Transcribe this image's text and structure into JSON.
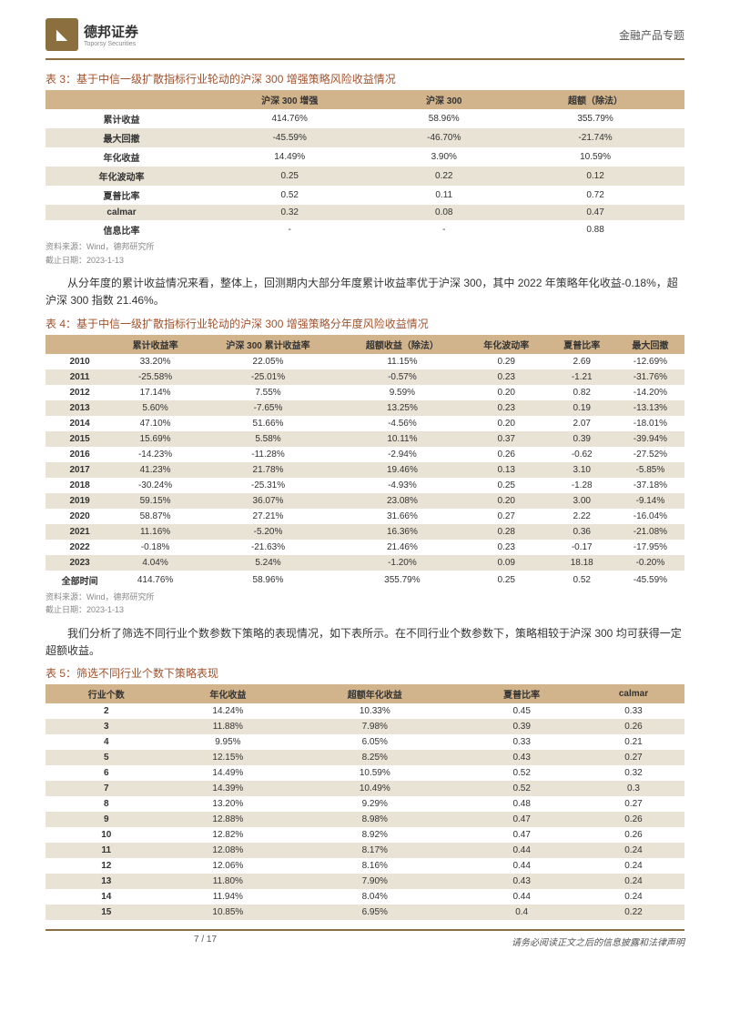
{
  "header": {
    "company": "德邦证券",
    "company_sub": "Toporsy Securities",
    "category": "金融产品专题"
  },
  "colors": {
    "accent": "#8b6f3f",
    "title": "#a0522d",
    "th_bg": "#d2b48c",
    "row_even": "#e8e3d5",
    "row_odd": "#ffffff"
  },
  "table3": {
    "title": "表 3：基于中信一级扩散指标行业轮动的沪深 300 增强策略风险收益情况",
    "columns": [
      "",
      "沪深 300 增强",
      "沪深 300",
      "超额（除法）"
    ],
    "rows": [
      [
        "累计收益",
        "414.76%",
        "58.96%",
        "355.79%"
      ],
      [
        "最大回撤",
        "-45.59%",
        "-46.70%",
        "-21.74%"
      ],
      [
        "年化收益",
        "14.49%",
        "3.90%",
        "10.59%"
      ],
      [
        "年化波动率",
        "0.25",
        "0.22",
        "0.12"
      ],
      [
        "夏普比率",
        "0.52",
        "0.11",
        "0.72"
      ],
      [
        "calmar",
        "0.32",
        "0.08",
        "0.47"
      ],
      [
        "信息比率",
        "-",
        "-",
        "0.88"
      ]
    ],
    "source1": "资料来源：Wind，德邦研究所",
    "source2": "截止日期：2023-1-13"
  },
  "para1": "从分年度的累计收益情况来看，整体上，回测期内大部分年度累计收益率优于沪深 300，其中 2022 年策略年化收益-0.18%，超沪深 300 指数 21.46%。",
  "table4": {
    "title": "表 4：基于中信一级扩散指标行业轮动的沪深 300 增强策略分年度风险收益情况",
    "columns": [
      "",
      "累计收益率",
      "沪深 300 累计收益率",
      "超额收益（除法）",
      "年化波动率",
      "夏普比率",
      "最大回撤"
    ],
    "rows": [
      [
        "2010",
        "33.20%",
        "22.05%",
        "11.15%",
        "0.29",
        "2.69",
        "-12.69%"
      ],
      [
        "2011",
        "-25.58%",
        "-25.01%",
        "-0.57%",
        "0.23",
        "-1.21",
        "-31.76%"
      ],
      [
        "2012",
        "17.14%",
        "7.55%",
        "9.59%",
        "0.20",
        "0.82",
        "-14.20%"
      ],
      [
        "2013",
        "5.60%",
        "-7.65%",
        "13.25%",
        "0.23",
        "0.19",
        "-13.13%"
      ],
      [
        "2014",
        "47.10%",
        "51.66%",
        "-4.56%",
        "0.20",
        "2.07",
        "-18.01%"
      ],
      [
        "2015",
        "15.69%",
        "5.58%",
        "10.11%",
        "0.37",
        "0.39",
        "-39.94%"
      ],
      [
        "2016",
        "-14.23%",
        "-11.28%",
        "-2.94%",
        "0.26",
        "-0.62",
        "-27.52%"
      ],
      [
        "2017",
        "41.23%",
        "21.78%",
        "19.46%",
        "0.13",
        "3.10",
        "-5.85%"
      ],
      [
        "2018",
        "-30.24%",
        "-25.31%",
        "-4.93%",
        "0.25",
        "-1.28",
        "-37.18%"
      ],
      [
        "2019",
        "59.15%",
        "36.07%",
        "23.08%",
        "0.20",
        "3.00",
        "-9.14%"
      ],
      [
        "2020",
        "58.87%",
        "27.21%",
        "31.66%",
        "0.27",
        "2.22",
        "-16.04%"
      ],
      [
        "2021",
        "11.16%",
        "-5.20%",
        "16.36%",
        "0.28",
        "0.36",
        "-21.08%"
      ],
      [
        "2022",
        "-0.18%",
        "-21.63%",
        "21.46%",
        "0.23",
        "-0.17",
        "-17.95%"
      ],
      [
        "2023",
        "4.04%",
        "5.24%",
        "-1.20%",
        "0.09",
        "18.18",
        "-0.20%"
      ],
      [
        "全部时间",
        "414.76%",
        "58.96%",
        "355.79%",
        "0.25",
        "0.52",
        "-45.59%"
      ]
    ],
    "source1": "资料来源：Wind，德邦研究所",
    "source2": "截止日期：2023-1-13"
  },
  "para2": "我们分析了筛选不同行业个数参数下策略的表现情况，如下表所示。在不同行业个数参数下，策略相较于沪深 300 均可获得一定超额收益。",
  "table5": {
    "title": "表 5：筛选不同行业个数下策略表现",
    "columns": [
      "行业个数",
      "年化收益",
      "超额年化收益",
      "夏普比率",
      "calmar"
    ],
    "rows": [
      [
        "2",
        "14.24%",
        "10.33%",
        "0.45",
        "0.33"
      ],
      [
        "3",
        "11.88%",
        "7.98%",
        "0.39",
        "0.26"
      ],
      [
        "4",
        "9.95%",
        "6.05%",
        "0.33",
        "0.21"
      ],
      [
        "5",
        "12.15%",
        "8.25%",
        "0.43",
        "0.27"
      ],
      [
        "6",
        "14.49%",
        "10.59%",
        "0.52",
        "0.32"
      ],
      [
        "7",
        "14.39%",
        "10.49%",
        "0.52",
        "0.3"
      ],
      [
        "8",
        "13.20%",
        "9.29%",
        "0.48",
        "0.27"
      ],
      [
        "9",
        "12.88%",
        "8.98%",
        "0.47",
        "0.26"
      ],
      [
        "10",
        "12.82%",
        "8.92%",
        "0.47",
        "0.26"
      ],
      [
        "11",
        "12.08%",
        "8.17%",
        "0.44",
        "0.24"
      ],
      [
        "12",
        "12.06%",
        "8.16%",
        "0.44",
        "0.24"
      ],
      [
        "13",
        "11.80%",
        "7.90%",
        "0.43",
        "0.24"
      ],
      [
        "14",
        "11.94%",
        "8.04%",
        "0.44",
        "0.24"
      ],
      [
        "15",
        "10.85%",
        "6.95%",
        "0.4",
        "0.22"
      ]
    ]
  },
  "footer": {
    "page": "7 / 17",
    "disclaimer": "请务必阅读正文之后的信息披露和法律声明"
  }
}
